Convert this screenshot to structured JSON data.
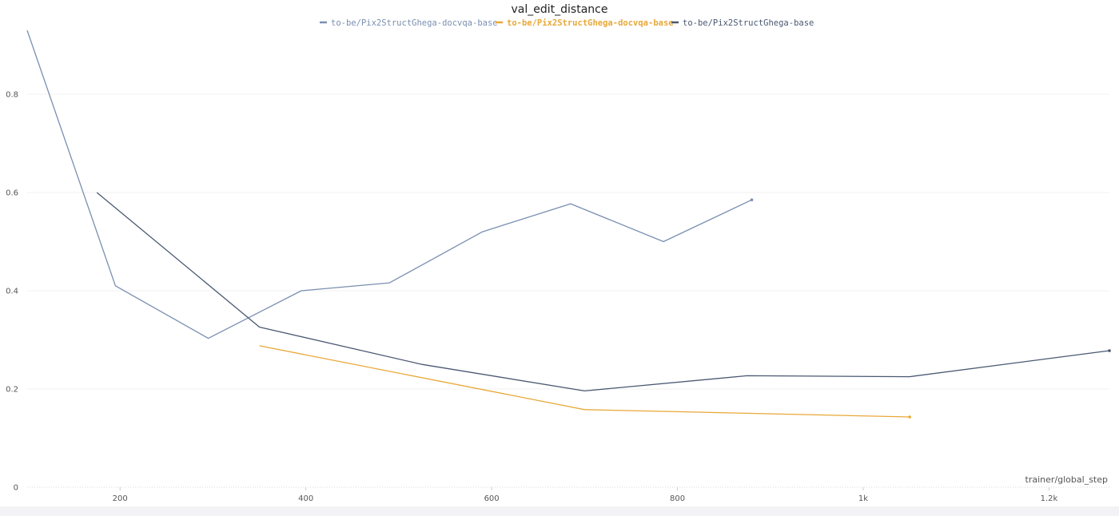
{
  "chart_data": {
    "type": "line",
    "title": "val_edit_distance",
    "xlabel": "trainer/global_step",
    "ylabel": "",
    "xlim": [
      100,
      1265
    ],
    "ylim": [
      0,
      0.93
    ],
    "x_ticks": [
      200,
      400,
      600,
      800,
      1000,
      1200
    ],
    "x_tick_labels": [
      "200",
      "400",
      "600",
      "800",
      "1k",
      "1.2k"
    ],
    "y_ticks": [
      0,
      0.2,
      0.4,
      0.6,
      0.8
    ],
    "y_tick_labels": [
      "0",
      "0.2",
      "0.4",
      "0.6",
      "0.8"
    ],
    "grid": true,
    "legend_position": "top",
    "series": [
      {
        "name": "to-be/Pix2StructGhega-docvqa-base",
        "color": "#7a8fb0",
        "bold": false,
        "x": [
          100,
          195,
          295,
          395,
          490,
          590,
          685,
          785,
          880
        ],
        "y": [
          0.93,
          0.41,
          0.303,
          0.4,
          0.416,
          0.52,
          0.577,
          0.5,
          0.585
        ]
      },
      {
        "name": "to-be/Pix2StructGhega-docvqa-base",
        "color": "#e8a838",
        "bold": true,
        "x": [
          350,
          700,
          1050
        ],
        "y": [
          0.288,
          0.158,
          0.143
        ]
      },
      {
        "name": "to-be/Pix2StructGhega-base",
        "color": "#4a5872",
        "bold": false,
        "x": [
          175,
          350,
          525,
          700,
          875,
          1050,
          1265
        ],
        "y": [
          0.6,
          0.326,
          0.25,
          0.196,
          0.227,
          0.225,
          0.278
        ]
      }
    ]
  }
}
